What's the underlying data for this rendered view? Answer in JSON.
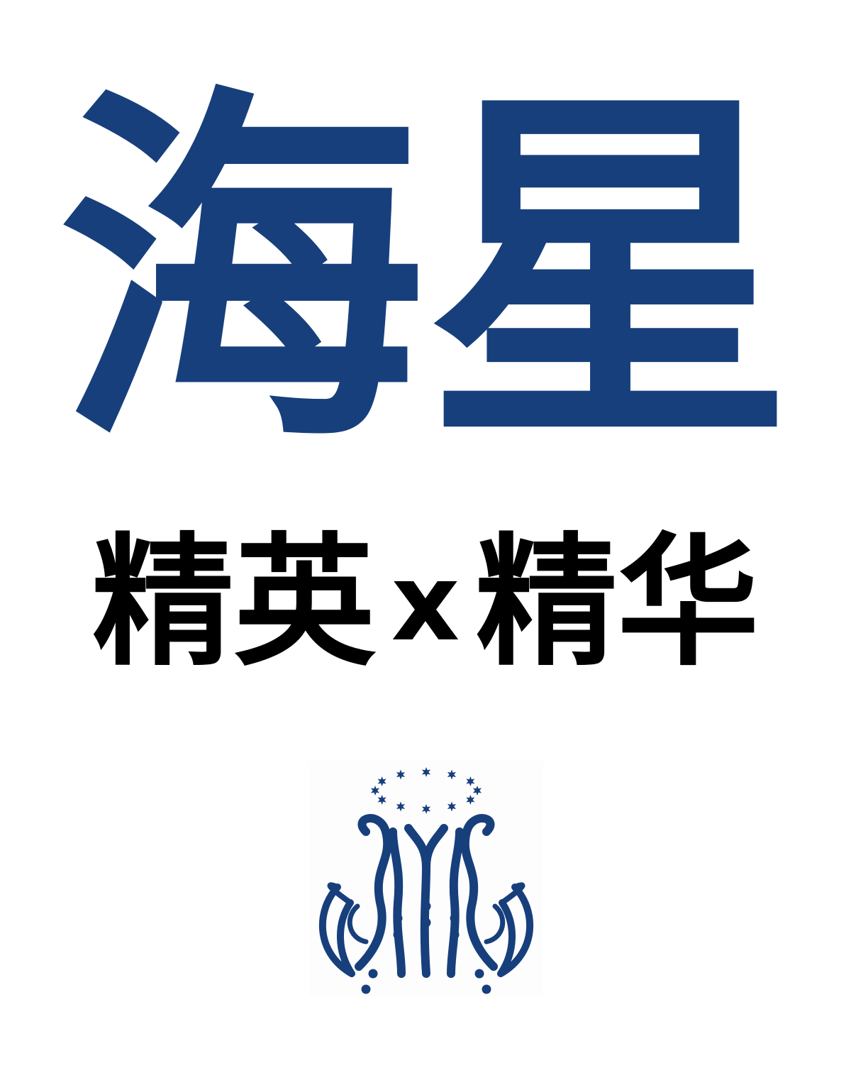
{
  "poster": {
    "title": "海星",
    "subtitle_left": "精英",
    "subtitle_x": "x",
    "subtitle_right": "精华",
    "title_color": "#173f7c",
    "subtitle_color": "#000000"
  },
  "logo": {
    "icon": "marian-monogram-with-stars-icon",
    "color": "#173f7c",
    "star_count": 12
  }
}
